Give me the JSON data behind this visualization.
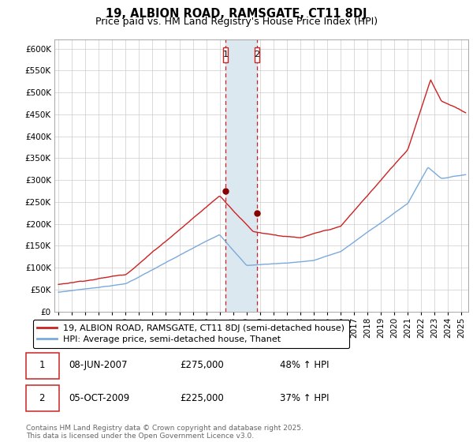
{
  "title": "19, ALBION ROAD, RAMSGATE, CT11 8DJ",
  "subtitle": "Price paid vs. HM Land Registry's House Price Index (HPI)",
  "ylim": [
    0,
    620000
  ],
  "yticks": [
    0,
    50000,
    100000,
    150000,
    200000,
    250000,
    300000,
    350000,
    400000,
    450000,
    500000,
    550000,
    600000
  ],
  "xlim_start": 1994.7,
  "xlim_end": 2025.5,
  "sale1_date": 2007.44,
  "sale1_price": 275000,
  "sale1_label": "1",
  "sale2_date": 2009.75,
  "sale2_price": 225000,
  "sale2_label": "2",
  "hpi_color": "#7aaadd",
  "price_color": "#cc2222",
  "shade_color": "#dce8f0",
  "grid_color": "#cccccc",
  "legend_line1": "19, ALBION ROAD, RAMSGATE, CT11 8DJ (semi-detached house)",
  "legend_line2": "HPI: Average price, semi-detached house, Thanet",
  "table_row1": [
    "1",
    "08-JUN-2007",
    "£275,000",
    "48% ↑ HPI"
  ],
  "table_row2": [
    "2",
    "05-OCT-2009",
    "£225,000",
    "37% ↑ HPI"
  ],
  "footnote": "Contains HM Land Registry data © Crown copyright and database right 2025.\nThis data is licensed under the Open Government Licence v3.0.",
  "title_fontsize": 10.5,
  "subtitle_fontsize": 9,
  "tick_fontsize": 7.5,
  "legend_fontsize": 8,
  "table_fontsize": 8.5,
  "footnote_fontsize": 6.5,
  "bg_color": "#f8f8f8"
}
